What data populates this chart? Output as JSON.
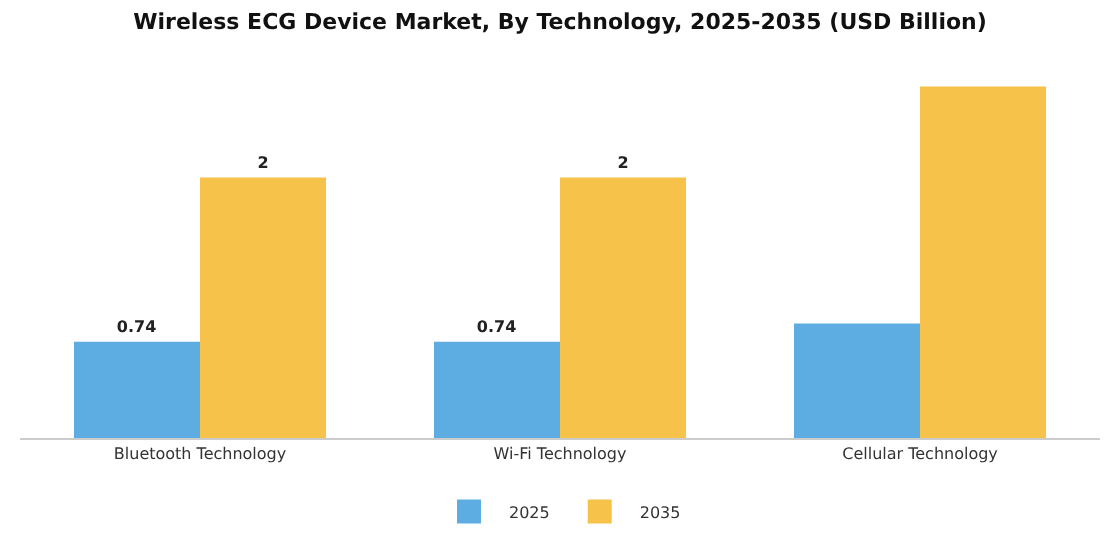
{
  "chart_data": {
    "type": "bar",
    "title": "Wireless ECG Device Market, By Technology, 2025-2035 (USD Billion)",
    "categories": [
      "Bluetooth Technology",
      "Wi-Fi Technology",
      "Cellular Technology"
    ],
    "series": [
      {
        "name": "2025",
        "color": "#5dade2",
        "values": [
          0.74,
          0.74,
          0.88
        ],
        "value_labels": [
          "0.74",
          "0.74",
          null
        ]
      },
      {
        "name": "2035",
        "color": "#f7c24a",
        "values": [
          2,
          2,
          2.7
        ],
        "value_labels": [
          "2",
          "2",
          null
        ]
      }
    ],
    "legend": "bottom",
    "grid": false
  }
}
